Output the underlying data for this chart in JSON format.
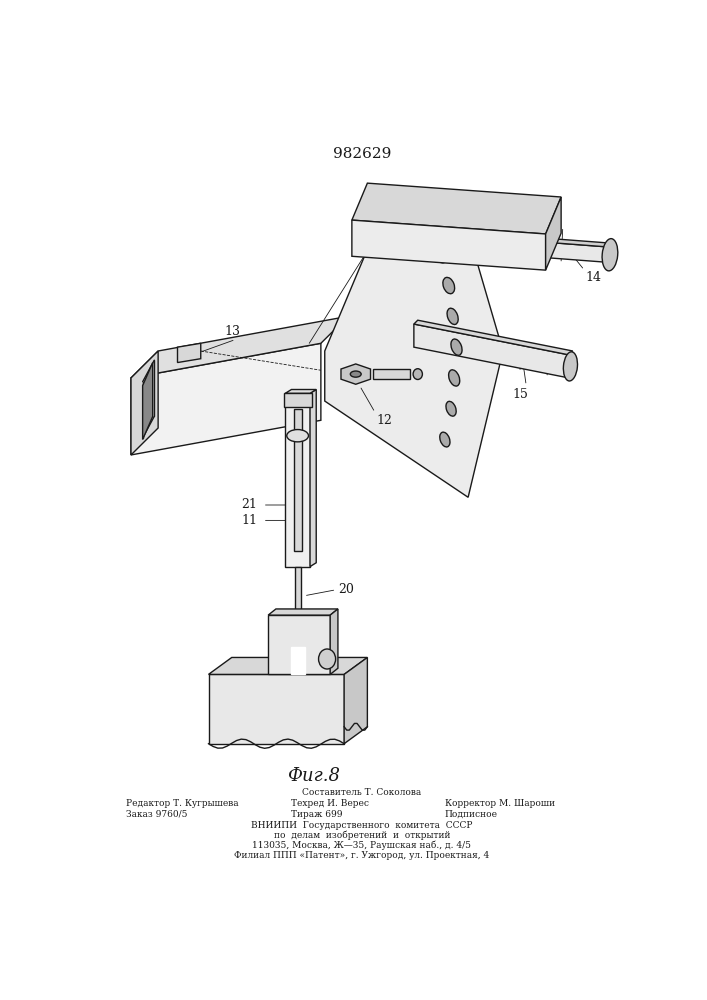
{
  "patent_number": "982629",
  "fig_label": "Фиг.8",
  "footer": {
    "sostavitel": "Составитель Т. Соколова",
    "redaktor_label": "Редактор Т. Кугрышева",
    "tehred_label": "Техред И. Верес",
    "korrektor_label": "Корректор М. Шароши",
    "zakaz_label": "Заказ 9760/5",
    "tirazh_label": "Тираж 699",
    "podpisnoe_label": "Подписное",
    "vniipи_line1": "ВНИИПИ  Государственного  комитета  СССР",
    "vniipи_line2": "по  делам  изобретений  и  открытий",
    "vniipи_line3": "113035, Москва, Ж—35, Раушская наб., д. 4/5",
    "vniipи_line4": "Филиал ППП «Патент», г. Ужгород, ул. Проектная, 4"
  },
  "bg_color": "#ffffff",
  "line_color": "#1a1a1a"
}
